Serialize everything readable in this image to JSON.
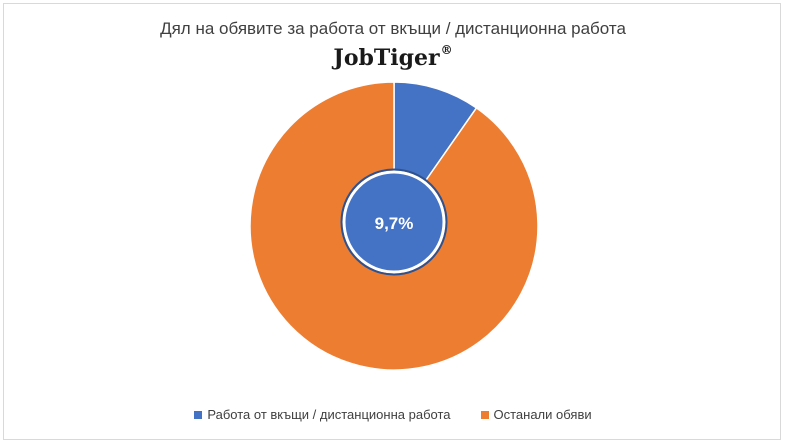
{
  "chart_data": {
    "type": "pie",
    "title": "Дял на обявите за работа от вкъщи / дистанционна работа",
    "brand": "JobTiger",
    "brand_mark": "®",
    "categories": [
      "Работа от вкъщи / дистанционна работа",
      "Останали обяви"
    ],
    "values": [
      9.7,
      90.3
    ],
    "colors": [
      "#4472C4",
      "#ED7D31"
    ],
    "center_label": "9,7%",
    "legend_position": "bottom"
  }
}
